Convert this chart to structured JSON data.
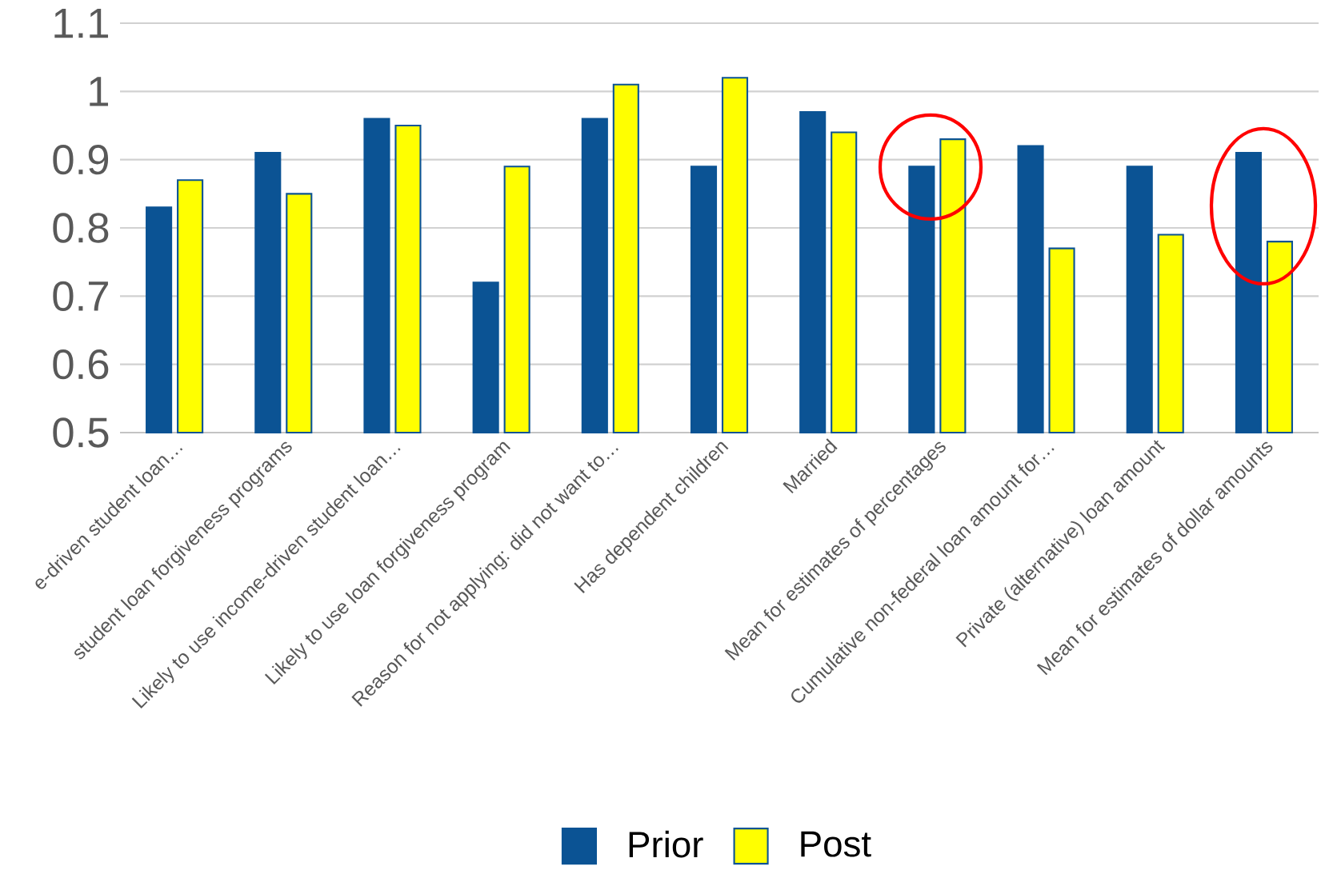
{
  "chart_data": {
    "type": "bar",
    "categories": [
      "e-driven student loan…",
      "student loan forgiveness programs",
      "Likely to use income-driven student loan…",
      "Likely to use loan forgiveness program",
      "Reason for not applying: did not want to…",
      "Has dependent children",
      "Married",
      "Mean for estimates of percentages",
      "Cumulative non-federal loan amount for…",
      "Private (alternative) loan amount",
      "Mean for estimates of dollar amounts"
    ],
    "series": [
      {
        "name": "Prior",
        "color": "#0b5394",
        "values": [
          0.83,
          0.91,
          0.96,
          0.72,
          0.96,
          0.89,
          0.97,
          0.89,
          0.92,
          0.89,
          0.91
        ]
      },
      {
        "name": "Post",
        "color": "#ffff00",
        "values": [
          0.87,
          0.85,
          0.95,
          0.89,
          1.01,
          1.02,
          0.94,
          0.93,
          0.77,
          0.79,
          0.78
        ]
      }
    ],
    "ylim": [
      0.5,
      1.1
    ],
    "yticks": [
      0.5,
      0.6,
      0.7,
      0.8,
      0.9,
      1,
      1.1
    ],
    "grid": "y",
    "legend": "bottom"
  }
}
